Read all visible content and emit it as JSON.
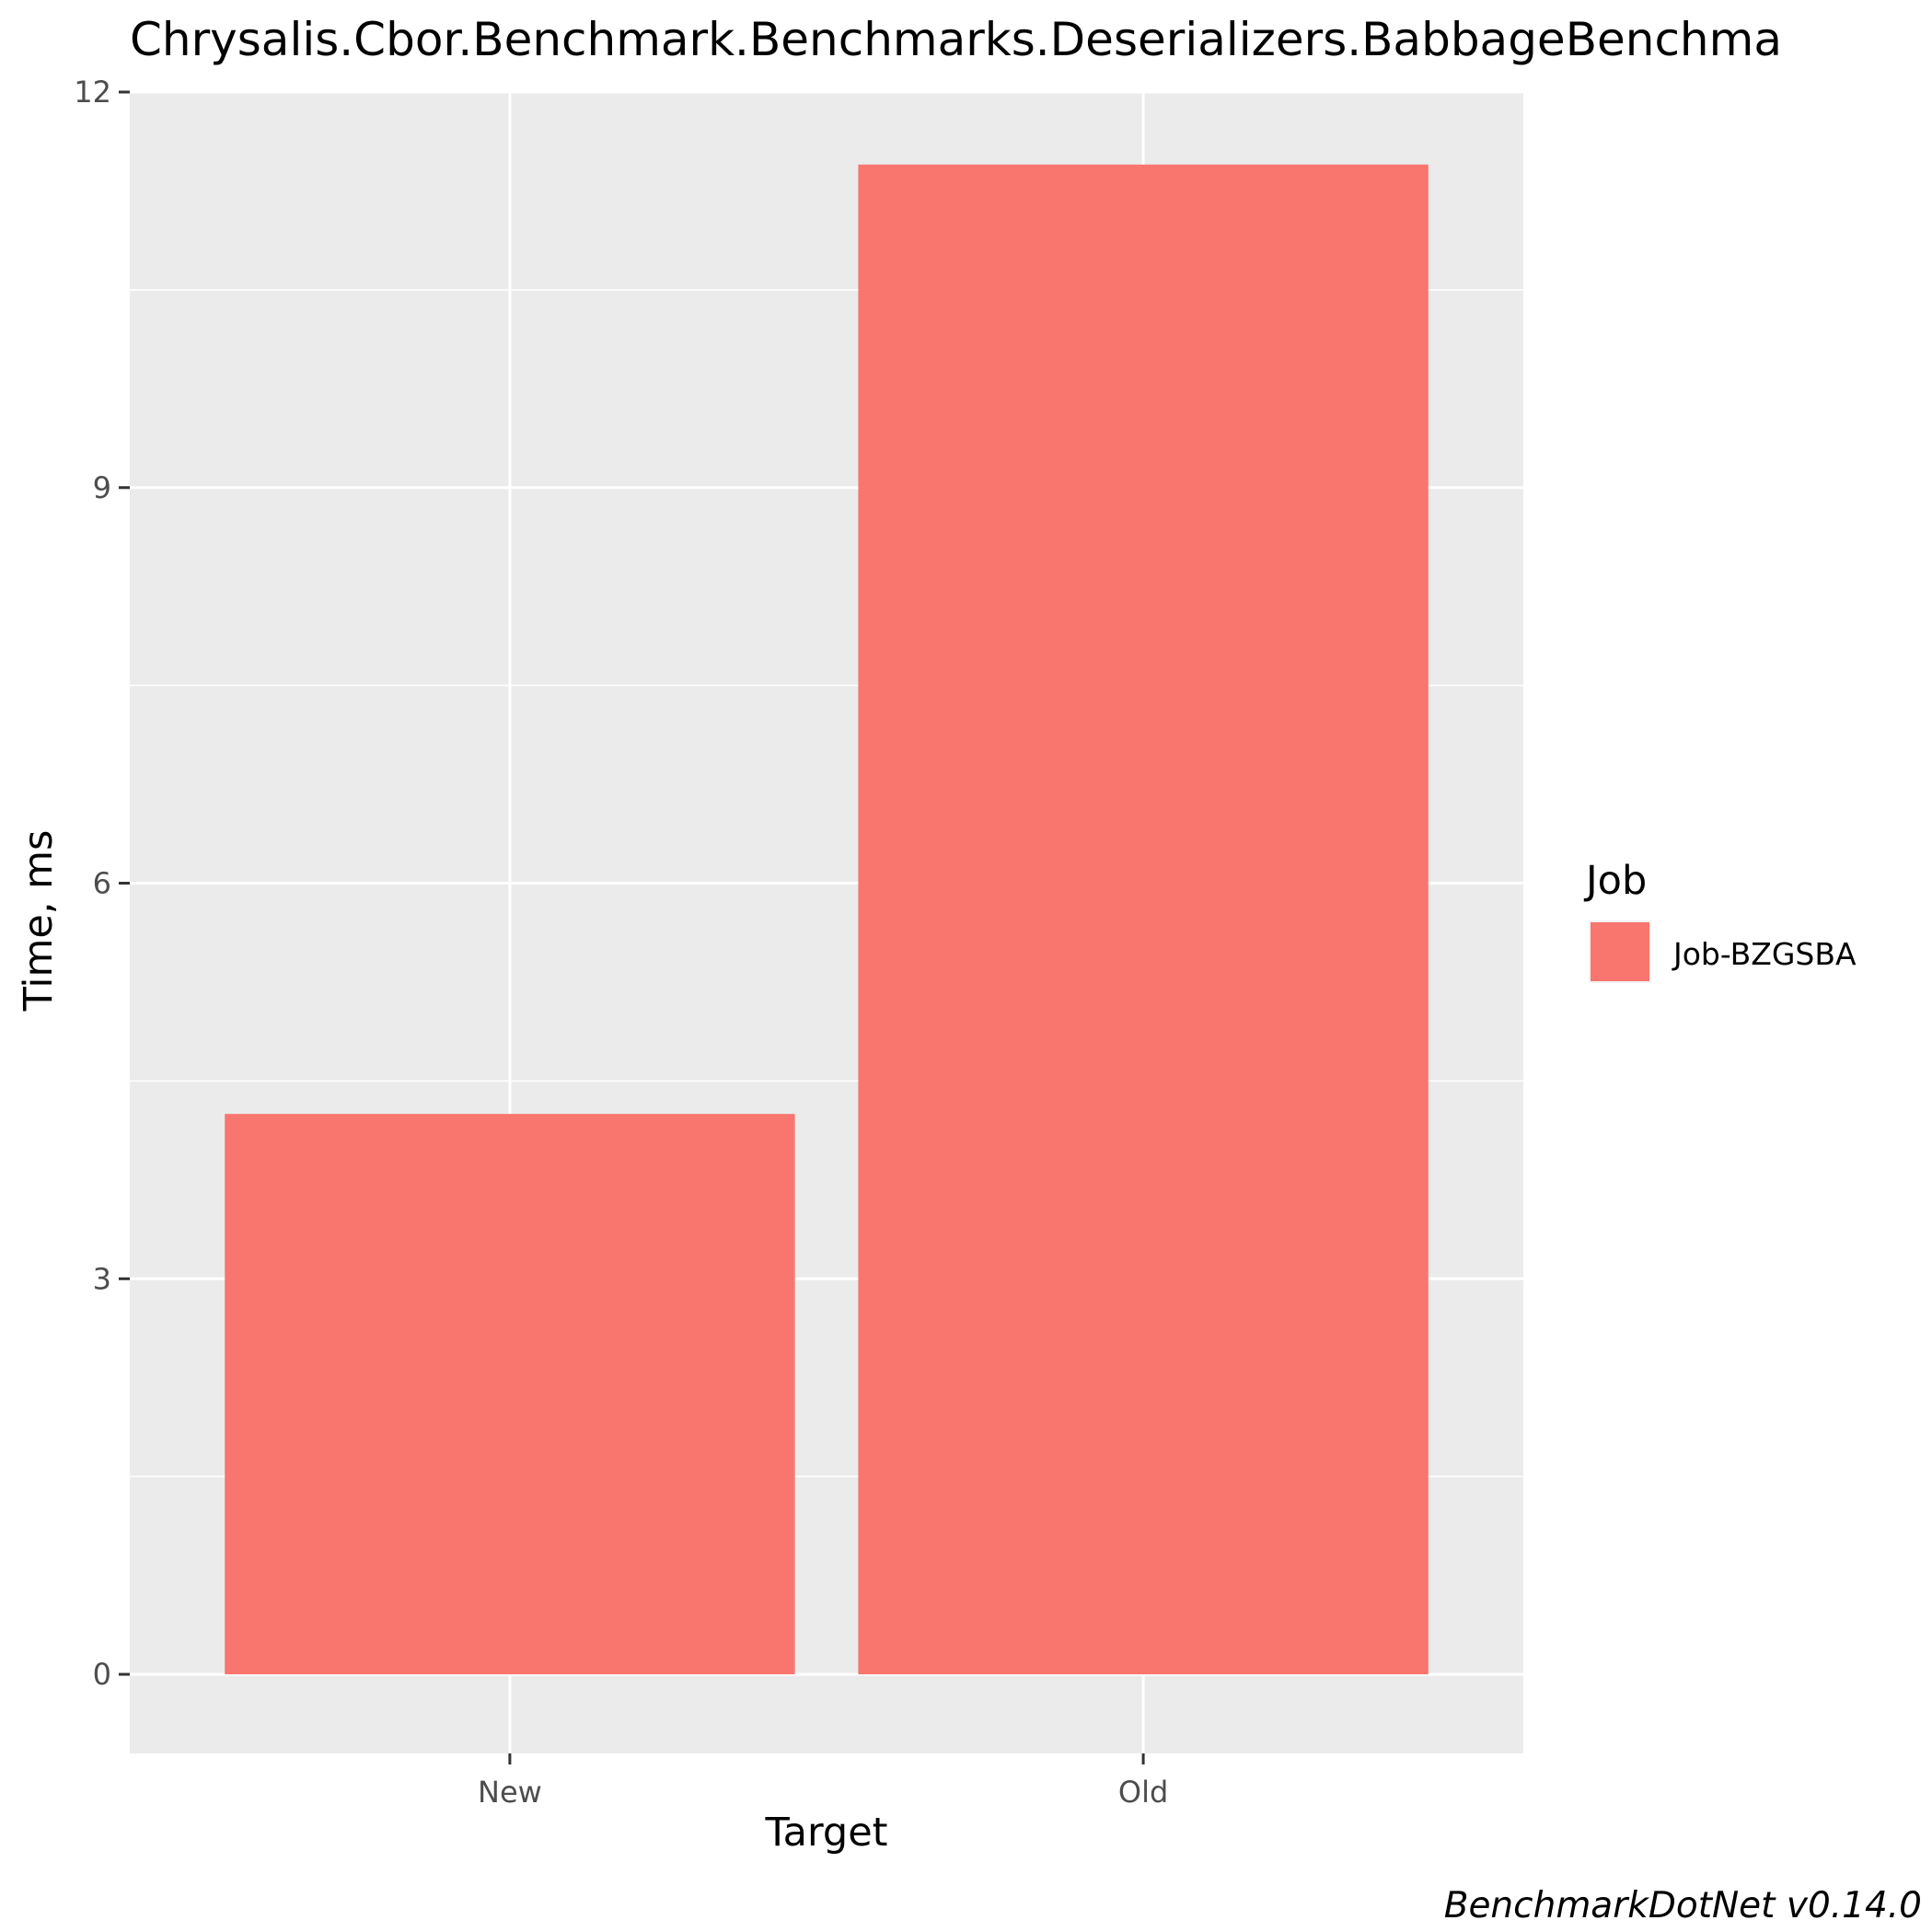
{
  "chart_data": {
    "type": "bar",
    "title": "Chrysalis.Cbor.Benchmark.Benchmarks.Deserializers.BabbageBenchma",
    "xlabel": "Target",
    "ylabel": "Time, ms",
    "categories": [
      "New",
      "Old"
    ],
    "series": [
      {
        "name": "Job-BZGSBA",
        "values": [
          4.25,
          11.45
        ],
        "color": "#F8766D"
      }
    ],
    "ylim": [
      -0.6,
      12
    ],
    "yticks": [
      0,
      3,
      6,
      9,
      12
    ],
    "ytick_labels": [
      "0",
      "3",
      "6",
      "9",
      "12"
    ],
    "grid": true,
    "legend": {
      "title": "Job",
      "position": "right"
    },
    "caption": "BenchmarkDotNet v0.14.0",
    "colors": {
      "panel_background": "#EBEBEB",
      "grid_line": "#FFFFFF",
      "tick_mark": "#333333"
    }
  }
}
